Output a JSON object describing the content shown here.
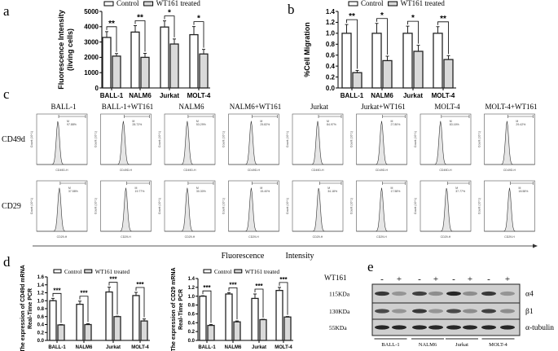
{
  "panel_labels": {
    "a": "a",
    "b": "b",
    "c": "c",
    "d": "d",
    "e": "e"
  },
  "legend": {
    "control": "Control",
    "treated": "WT161 treated"
  },
  "colors": {
    "control": "#ffffff",
    "treated": "#d9d9d9",
    "stroke": "#222222",
    "hist_fill": "#e6e6e6"
  },
  "chart_data": [
    {
      "id": "a",
      "type": "bar",
      "title": "",
      "ylabel": [
        "Fluorescence Intensity",
        "(living cells)"
      ],
      "categories": [
        "BALL-1",
        "NALM6",
        "Jurkat",
        "MOLT-4"
      ],
      "ylim": [
        0,
        5000
      ],
      "yticks": [
        "0",
        "1000",
        "2000",
        "3000",
        "4000",
        "5000"
      ],
      "series": [
        {
          "name": "Control",
          "values": [
            3300,
            3650,
            3980,
            3480
          ],
          "errors": [
            380,
            420,
            400,
            530
          ]
        },
        {
          "name": "WT161 treated",
          "values": [
            2080,
            2000,
            2870,
            2220
          ],
          "errors": [
            170,
            260,
            330,
            300
          ]
        }
      ],
      "significance": [
        "**",
        "**",
        "*",
        "*"
      ]
    },
    {
      "id": "b",
      "type": "bar",
      "title": "",
      "ylabel": [
        "%Cell Migration"
      ],
      "categories": [
        "BALL-1",
        "NALM6",
        "Jurkat",
        "MOLT-4"
      ],
      "ylim": [
        0,
        1.4
      ],
      "yticks": [
        "0.0",
        "0.2",
        "0.4",
        "0.6",
        "0.8",
        "1.0",
        "1.2",
        "1.4"
      ],
      "series": [
        {
          "name": "Control",
          "values": [
            1.0,
            1.0,
            1.0,
            1.0
          ],
          "errors": [
            0.16,
            0.18,
            0.13,
            0.12
          ]
        },
        {
          "name": "WT161 treated",
          "values": [
            0.28,
            0.5,
            0.67,
            0.52
          ],
          "errors": [
            0.04,
            0.08,
            0.11,
            0.07
          ]
        }
      ],
      "significance": [
        "**",
        "*",
        "*",
        "**"
      ]
    },
    {
      "id": "d1",
      "type": "bar",
      "title": "",
      "ylabel": [
        "The expression of CD49d mRNA",
        "Real-Time PCR"
      ],
      "categories": [
        "BALL-1",
        "NALM6",
        "Jurkat",
        "MOLT-4"
      ],
      "ylim": [
        0,
        1.6
      ],
      "yticks": [
        "0.0",
        "0.2",
        "0.4",
        "0.6",
        "0.8",
        "1.0",
        "1.2",
        "1.4",
        "1.6"
      ],
      "series": [
        {
          "name": "Control",
          "values": [
            1.0,
            0.91,
            1.22,
            1.13
          ],
          "errors": [
            0.06,
            0.08,
            0.12,
            0.08
          ]
        },
        {
          "name": "WT161 treated",
          "values": [
            0.39,
            0.4,
            0.6,
            0.49
          ],
          "errors": [
            0.01,
            0.02,
            0.01,
            0.05
          ]
        }
      ],
      "significance": [
        "***",
        "***",
        "***",
        "***"
      ]
    },
    {
      "id": "d2",
      "type": "bar",
      "title": "",
      "ylabel": [
        "The expression of CD29 mRNA",
        "Real-Time PCR"
      ],
      "categories": [
        "BALL-1",
        "NALM6",
        "Jurkat",
        "MOLT-4"
      ],
      "ylim": [
        0,
        1.4
      ],
      "yticks": [
        "0.0",
        "0.2",
        "0.4",
        "0.6",
        "0.8",
        "1.0",
        "1.2",
        "1.4"
      ],
      "series": [
        {
          "name": "Control",
          "values": [
            1.0,
            1.05,
            0.95,
            1.13
          ],
          "errors": [
            0.01,
            0.03,
            0.1,
            0.07
          ]
        },
        {
          "name": "WT161 treated",
          "values": [
            0.34,
            0.42,
            0.47,
            0.53
          ],
          "errors": [
            0.02,
            0.02,
            0.01,
            0.01
          ]
        }
      ],
      "significance": [
        "***",
        "***",
        "***",
        "***"
      ]
    }
  ],
  "flow": {
    "columns": [
      "BALL-1",
      "BALL-1+WT161",
      "NALM6",
      "NALM6+WT161",
      "Jurkat",
      "Jurkat+WT161",
      "MOLT-4",
      "MOLT-4+WT161"
    ],
    "rows": [
      {
        "label": "CD49d",
        "xlabel": "CD49D-H",
        "gate": "M",
        "percents": [
          "97.88%",
          "28.72%",
          "53.29%",
          "25.82%",
          "84.97%",
          "27.80%",
          "83.16%",
          "29.42%"
        ]
      },
      {
        "label": "CD29",
        "xlabel": "CD29-H",
        "gate": "M",
        "percents": [
          "37.58%",
          "19.77%",
          "30.30%",
          "15.40%",
          "34.18%",
          "17.58%",
          "37.77%",
          "18.58%"
        ]
      }
    ],
    "ylabel": "Count (10^1)",
    "axis_title": [
      "Fluorescence",
      "Intensity"
    ]
  },
  "western": {
    "treatment_label": "WT161",
    "signs": [
      "-",
      "+",
      "-",
      "+",
      "-",
      "+",
      "-",
      "+"
    ],
    "bands": [
      {
        "size": "115KDa",
        "protein": "α4",
        "intensity": [
          0.85,
          0.3,
          0.8,
          0.35,
          0.95,
          0.35,
          0.85,
          0.3
        ]
      },
      {
        "size": "130KDa",
        "protein": "β1",
        "intensity": [
          0.75,
          0.3,
          0.85,
          0.3,
          0.75,
          0.35,
          0.8,
          0.35
        ]
      },
      {
        "size": "55KDa",
        "protein": "α-tubulin",
        "intensity": [
          0.95,
          0.95,
          0.95,
          0.95,
          0.95,
          0.95,
          0.95,
          0.95
        ]
      }
    ],
    "groups": [
      "BALL-1",
      "NALM6",
      "Jurkat",
      "MOLT-4"
    ]
  }
}
